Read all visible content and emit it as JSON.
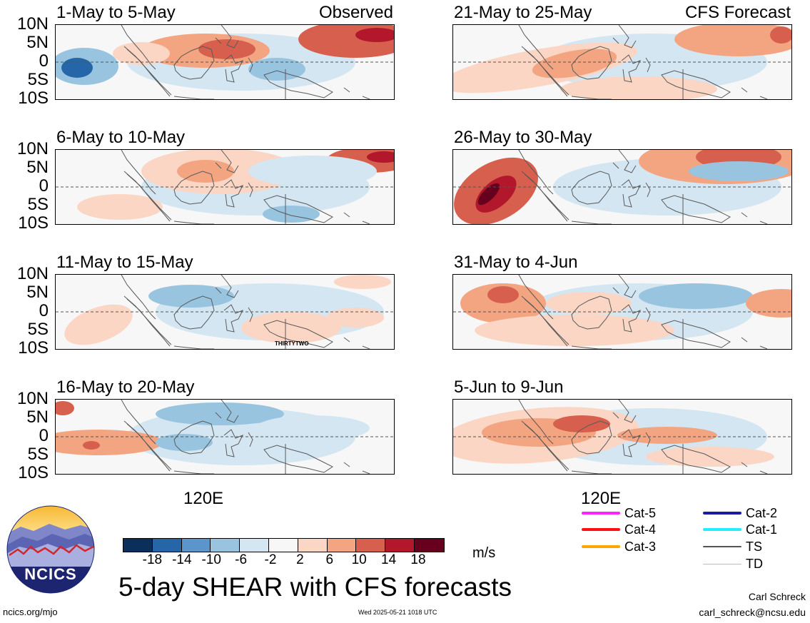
{
  "observed_tag": "Observed",
  "forecast_tag": "CFS Forecast",
  "lat_labels": [
    "10N",
    "5N",
    "0",
    "5S",
    "10S"
  ],
  "lon_label": "120E",
  "panel_titles": {
    "obs": [
      "1-May to 5-May",
      "6-May to 10-May",
      "11-May to 15-May",
      "16-May to 20-May"
    ],
    "fcst": [
      "21-May to 25-May",
      "26-May to 30-May",
      "31-May to 4-Jun",
      "5-Jun to 9-Jun"
    ]
  },
  "overlay_label": "THIRTYTWO",
  "colorbar": {
    "colors": [
      "#0a2f5a",
      "#2566a8",
      "#5a96cb",
      "#99c4e0",
      "#d3e6f2",
      "#f7f7f7",
      "#fcd6c4",
      "#f3a582",
      "#d6604d",
      "#b3172b",
      "#67001f"
    ],
    "ticks": [
      "-18",
      "-14",
      "-10",
      "-6",
      "-2",
      "2",
      "6",
      "10",
      "14",
      "18"
    ],
    "units": "m/s"
  },
  "title": "5-day SHEAR with CFS forecasts",
  "legend": [
    {
      "label": "Cat-5",
      "color": "#ff22ff"
    },
    {
      "label": "Cat-4",
      "color": "#ff1111"
    },
    {
      "label": "Cat-3",
      "color": "#ffa500"
    },
    {
      "label": "Cat-2",
      "color": "#1a1aa6"
    },
    {
      "label": "Cat-1",
      "color": "#22eeff"
    },
    {
      "label": "TS",
      "color": "#555555"
    },
    {
      "label": "TD",
      "color": "#bbbbbb"
    }
  ],
  "logo_text": "NCICS",
  "footer": {
    "left": "ncics.org/mjo",
    "timestamp": "Wed 2025-05-21 1018 UTC",
    "author": "Carl Schreck",
    "email": "carl_schreck@ncsu.edu"
  }
}
